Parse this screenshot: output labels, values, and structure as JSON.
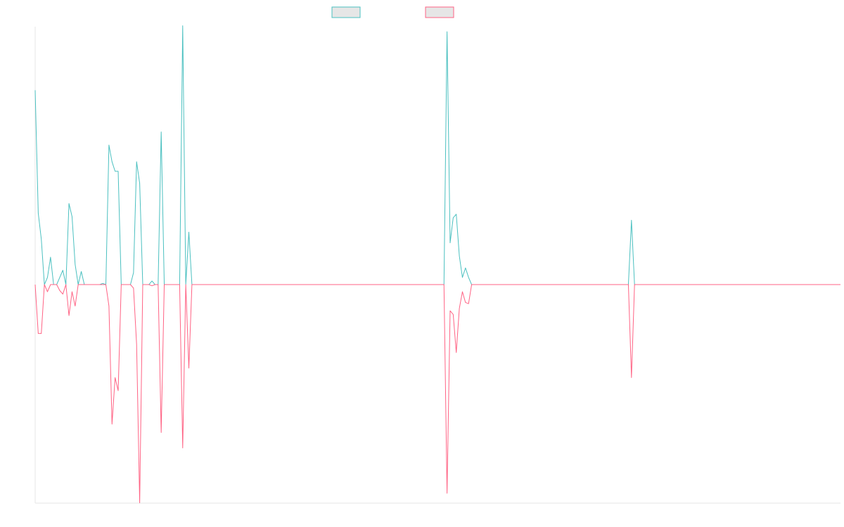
{
  "chart_data": {
    "type": "line",
    "title": "",
    "xlabel": "",
    "ylabel": "",
    "grid": false,
    "legend": "top-center",
    "x": [
      0,
      1,
      2,
      3,
      4,
      5,
      6,
      7,
      8,
      9,
      10,
      11,
      12,
      13,
      14,
      15,
      16,
      17,
      18,
      19,
      20,
      21,
      22,
      23,
      24,
      25,
      26,
      27,
      28,
      29,
      30,
      31,
      32,
      33,
      34,
      35,
      36,
      37,
      38,
      39,
      40,
      41,
      42,
      43,
      44,
      45,
      46,
      47,
      48,
      49,
      50,
      51,
      52,
      53,
      54,
      55,
      56,
      57,
      58,
      59,
      60,
      61,
      62,
      63,
      64,
      65,
      66,
      67,
      68,
      69,
      70,
      71,
      72,
      73,
      74,
      75,
      76,
      77,
      78,
      79,
      80,
      81,
      82,
      83,
      84,
      85,
      86,
      87,
      88,
      89,
      90,
      91,
      92,
      93,
      94,
      95,
      96,
      97,
      98,
      99,
      100,
      101,
      102,
      103,
      104,
      105,
      106,
      107,
      108,
      109,
      110,
      111,
      112,
      113,
      114,
      115,
      116,
      117,
      118,
      119,
      120,
      121,
      122,
      123,
      124,
      125,
      126,
      127,
      128,
      129,
      130,
      131,
      132,
      133,
      134,
      135,
      136,
      137,
      138,
      139,
      140,
      141,
      142,
      143,
      144,
      145,
      146,
      147,
      148,
      149,
      150,
      151,
      152,
      153,
      154,
      155,
      156,
      157,
      158,
      159,
      160,
      161,
      162,
      163,
      164,
      165,
      166,
      167,
      168,
      169,
      170,
      171,
      172,
      173,
      174,
      175,
      176,
      177,
      178,
      179,
      180,
      181,
      182,
      183,
      184,
      185,
      186,
      187,
      188,
      189,
      190,
      191,
      192,
      193,
      194,
      195,
      196,
      197,
      198,
      199,
      200,
      201,
      202,
      203,
      204,
      205,
      206,
      207,
      208,
      209,
      210,
      211,
      212,
      213,
      214,
      215,
      216,
      217,
      218,
      219,
      220,
      221,
      222,
      223,
      224,
      225,
      226,
      227,
      228,
      229,
      230,
      231,
      232,
      233,
      234,
      235,
      236,
      237,
      238,
      239,
      240,
      241,
      242,
      243,
      244,
      245,
      246,
      247,
      248,
      249,
      250,
      251,
      252,
      253,
      254,
      255,
      256,
      257,
      258,
      259,
      260,
      261,
      262
    ],
    "ylim": [
      -1.0,
      1.0
    ],
    "series": [
      {
        "color": "#4bc0c0",
        "values": [
          0.815,
          0.3,
          0.19,
          0.0,
          0.03,
          0.115,
          0.0,
          0.0,
          0.03,
          0.06,
          0.0,
          0.34,
          0.285,
          0.085,
          0.0,
          0.055,
          0.0,
          0.0,
          0.0,
          0.0,
          0.0,
          0.0,
          0.005,
          0.0,
          0.585,
          0.515,
          0.475,
          0.475,
          0.0,
          0.0,
          0.0,
          0.0,
          0.05,
          0.515,
          0.425,
          0.0,
          0.0,
          0.0,
          0.015,
          0.0,
          0.0,
          0.64,
          0.0,
          0.0,
          0.0,
          0.0,
          0.0,
          0.0,
          1.085,
          0.0,
          0.22,
          0.0,
          0.0,
          0.0,
          0.0,
          0.0,
          0.0,
          0.0,
          0.0,
          0.0,
          0.0,
          0.0,
          0.0,
          0.0,
          0.0,
          0.0,
          0.0,
          0.0,
          0.0,
          0.0,
          0.0,
          0.0,
          0.0,
          0.0,
          0.0,
          0.0,
          0.0,
          0.0,
          0.0,
          0.0,
          0.0,
          0.0,
          0.0,
          0.0,
          0.0,
          0.0,
          0.0,
          0.0,
          0.0,
          0.0,
          0.0,
          0.0,
          0.0,
          0.0,
          0.0,
          0.0,
          0.0,
          0.0,
          0.0,
          0.0,
          0.0,
          0.0,
          0.0,
          0.0,
          0.0,
          0.0,
          0.0,
          0.0,
          0.0,
          0.0,
          0.0,
          0.0,
          0.0,
          0.0,
          0.0,
          0.0,
          0.0,
          0.0,
          0.0,
          0.0,
          0.0,
          0.0,
          0.0,
          0.0,
          0.0,
          0.0,
          0.0,
          0.0,
          0.0,
          0.0,
          0.0,
          0.0,
          0.0,
          0.0,
          1.06,
          0.175,
          0.28,
          0.295,
          0.12,
          0.03,
          0.07,
          0.03,
          0.0,
          0.0,
          0.0,
          0.0,
          0.0,
          0.0,
          0.0,
          0.0,
          0.0,
          0.0,
          0.0,
          0.0,
          0.0,
          0.0,
          0.0,
          0.0,
          0.0,
          0.0,
          0.0,
          0.0,
          0.0,
          0.0,
          0.0,
          0.0,
          0.0,
          0.0,
          0.0,
          0.0,
          0.0,
          0.0,
          0.0,
          0.0,
          0.0,
          0.0,
          0.0,
          0.0,
          0.0,
          0.0,
          0.0,
          0.0,
          0.0,
          0.0,
          0.0,
          0.0,
          0.0,
          0.0,
          0.0,
          0.0,
          0.0,
          0.0,
          0.0,
          0.0,
          0.27,
          0.0,
          0.0,
          0.0,
          0.0,
          0.0,
          0.0,
          0.0,
          0.0,
          0.0,
          0.0,
          0.0,
          0.0,
          0.0,
          0.0,
          0.0,
          0.0,
          0.0,
          0.0,
          0.0,
          0.0,
          0.0,
          0.0,
          0.0,
          0.0,
          0.0,
          0.0,
          0.0,
          0.0,
          0.0,
          0.0,
          0.0,
          0.0,
          0.0,
          0.0,
          0.0,
          0.0,
          0.0,
          0.0,
          0.0,
          0.0,
          0.0,
          0.0,
          0.0,
          0.0,
          0.0,
          0.0,
          0.0,
          0.0,
          0.0,
          0.0,
          0.0,
          0.0,
          0.0,
          0.0,
          0.0,
          0.0,
          0.0,
          0.0,
          0.0,
          0.0,
          0.0,
          0.0,
          0.0,
          0.0,
          0.0,
          0.0,
          0.0,
          0.0
        ]
      },
      {
        "color": "#ff6384",
        "values": [
          0.0,
          -0.205,
          -0.205,
          0.0,
          -0.03,
          0.0,
          0.0,
          0.0,
          -0.025,
          -0.04,
          0.0,
          -0.13,
          -0.03,
          -0.09,
          0.0,
          0.0,
          0.0,
          0.0,
          0.0,
          0.0,
          0.0,
          0.0,
          0.0,
          0.0,
          -0.09,
          -0.585,
          -0.39,
          -0.445,
          0.0,
          0.0,
          0.0,
          0.0,
          -0.015,
          -0.25,
          -0.915,
          0.0,
          0.0,
          0.0,
          -0.005,
          0.0,
          0.0,
          -0.62,
          0.0,
          0.0,
          0.0,
          0.0,
          0.0,
          0.0,
          -0.685,
          0.0,
          -0.35,
          0.0,
          0.0,
          0.0,
          0.0,
          0.0,
          0.0,
          0.0,
          0.0,
          0.0,
          0.0,
          0.0,
          0.0,
          0.0,
          0.0,
          0.0,
          0.0,
          0.0,
          0.0,
          0.0,
          0.0,
          0.0,
          0.0,
          0.0,
          0.0,
          0.0,
          0.0,
          0.0,
          0.0,
          0.0,
          0.0,
          0.0,
          0.0,
          0.0,
          0.0,
          0.0,
          0.0,
          0.0,
          0.0,
          0.0,
          0.0,
          0.0,
          0.0,
          0.0,
          0.0,
          0.0,
          0.0,
          0.0,
          0.0,
          0.0,
          0.0,
          0.0,
          0.0,
          0.0,
          0.0,
          0.0,
          0.0,
          0.0,
          0.0,
          0.0,
          0.0,
          0.0,
          0.0,
          0.0,
          0.0,
          0.0,
          0.0,
          0.0,
          0.0,
          0.0,
          0.0,
          0.0,
          0.0,
          0.0,
          0.0,
          0.0,
          0.0,
          0.0,
          0.0,
          0.0,
          0.0,
          0.0,
          0.0,
          0.0,
          -0.875,
          -0.11,
          -0.125,
          -0.285,
          -0.1,
          -0.03,
          -0.075,
          -0.08,
          0.0,
          0.0,
          0.0,
          0.0,
          0.0,
          0.0,
          0.0,
          0.0,
          0.0,
          0.0,
          0.0,
          0.0,
          0.0,
          0.0,
          0.0,
          0.0,
          0.0,
          0.0,
          0.0,
          0.0,
          0.0,
          0.0,
          0.0,
          0.0,
          0.0,
          0.0,
          0.0,
          0.0,
          0.0,
          0.0,
          0.0,
          0.0,
          0.0,
          0.0,
          0.0,
          0.0,
          0.0,
          0.0,
          0.0,
          0.0,
          0.0,
          0.0,
          0.0,
          0.0,
          0.0,
          0.0,
          0.0,
          0.0,
          0.0,
          0.0,
          0.0,
          0.0,
          -0.39,
          0.0,
          0.0,
          0.0,
          0.0,
          0.0,
          0.0,
          0.0,
          0.0,
          0.0,
          0.0,
          0.0,
          0.0,
          0.0,
          0.0,
          0.0,
          0.0,
          0.0,
          0.0,
          0.0,
          0.0,
          0.0,
          0.0,
          0.0,
          0.0,
          0.0,
          0.0,
          0.0,
          0.0,
          0.0,
          0.0,
          0.0,
          0.0,
          0.0,
          0.0,
          0.0,
          0.0,
          0.0,
          0.0,
          0.0,
          0.0,
          0.0,
          0.0,
          0.0,
          0.0,
          0.0,
          0.0,
          0.0,
          0.0,
          0.0,
          0.0,
          0.0,
          0.0,
          0.0,
          0.0,
          0.0,
          0.0,
          0.0,
          0.0,
          0.0,
          0.0,
          0.0,
          0.0,
          0.0,
          0.0,
          0.0,
          0.0,
          0.0,
          0.0
        ]
      }
    ]
  }
}
